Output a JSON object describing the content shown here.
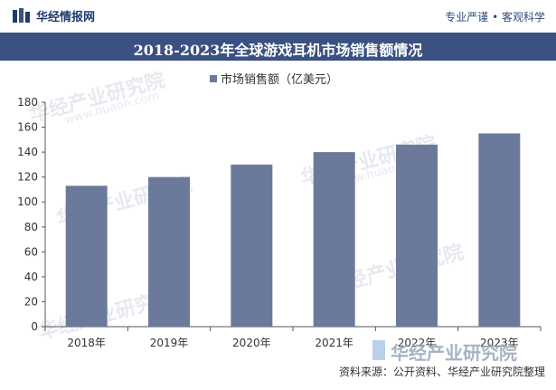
{
  "header": {
    "brand": "华经情报网",
    "tagline": "专业严谨 • 客观科学"
  },
  "title": "2018-2023年全球游戏耳机市场销售额情况",
  "watermark": {
    "text": "华经产业研究院",
    "url": "www.huaon.com"
  },
  "source": "资料来源：公开资料、华经产业研究院整理",
  "colors": {
    "bar": "#6b7a9a",
    "title_bg": "#3a5181",
    "axis": "#555555"
  },
  "chart_data": {
    "type": "bar",
    "categories": [
      "2018年",
      "2019年",
      "2020年",
      "2021年",
      "2022年",
      "2023年"
    ],
    "series": [
      {
        "name": "市场销售额（亿美元）",
        "values": [
          113,
          120,
          130,
          140,
          146,
          155
        ]
      }
    ],
    "title": "",
    "xlabel": "",
    "ylabel": "",
    "ylim": [
      0,
      180
    ],
    "yticks": [
      0,
      20,
      40,
      60,
      80,
      100,
      120,
      140,
      160,
      180
    ],
    "legend": "top-left",
    "grid": false
  }
}
